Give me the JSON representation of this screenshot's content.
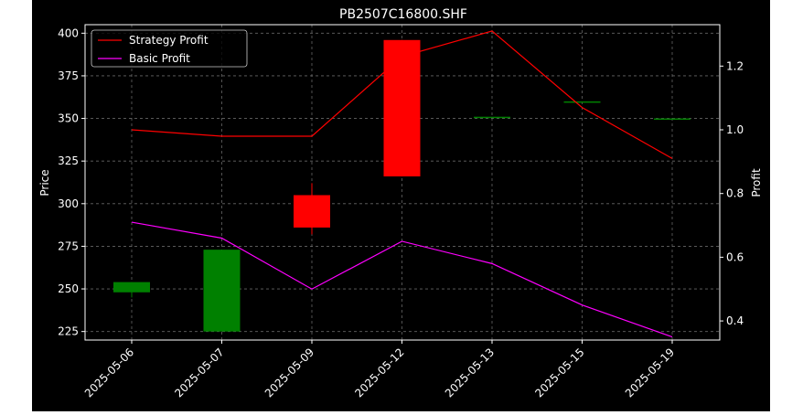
{
  "chart_data": {
    "type": "candlestick+line",
    "title": "PB2507C16800.SHF",
    "xlabel": "",
    "ylabel_left": "Price",
    "ylabel_right": "Profit",
    "categories": [
      "2025-05-06",
      "2025-05-07",
      "2025-05-09",
      "2025-05-12",
      "2025-05-13",
      "2025-05-15",
      "2025-05-19"
    ],
    "ylim_left": [
      220,
      405
    ],
    "yticks_left": [
      225,
      250,
      275,
      300,
      325,
      350,
      375,
      400
    ],
    "ylim_right": [
      0.34,
      1.33
    ],
    "yticks_right": [
      0.4,
      0.6,
      0.8,
      1.0,
      1.2
    ],
    "grid": true,
    "legend_position": "top-left",
    "candles": [
      {
        "date": "2025-05-06",
        "open": 248,
        "close": 254,
        "high": 254,
        "low": 245
      },
      {
        "date": "2025-05-07",
        "open": 225,
        "close": 273,
        "high": 273,
        "low": 225
      },
      {
        "date": "2025-05-09",
        "open": 305,
        "close": 286,
        "high": 312,
        "low": 282
      },
      {
        "date": "2025-05-12",
        "open": 396,
        "close": 316,
        "high": 396,
        "low": 316
      },
      {
        "date": "2025-05-13",
        "open": 351,
        "close": 351,
        "high": 351,
        "low": 351
      },
      {
        "date": "2025-05-15",
        "open": 360,
        "close": 360,
        "high": 360,
        "low": 360
      },
      {
        "date": "2025-05-19",
        "open": 350,
        "close": 350,
        "high": 350,
        "low": 350
      }
    ],
    "series": [
      {
        "name": "Strategy Profit",
        "color": "#ff0000",
        "values": [
          1.0,
          0.98,
          0.98,
          1.23,
          1.31,
          1.07,
          0.91
        ]
      },
      {
        "name": "Basic Profit",
        "color": "#ff00ff",
        "values": [
          0.71,
          0.66,
          0.5,
          0.65,
          0.58,
          0.45,
          0.35
        ]
      }
    ],
    "colors": {
      "up": "#008000",
      "down": "#ff0000",
      "grid": "#808080",
      "axes": "#ffffff"
    }
  }
}
